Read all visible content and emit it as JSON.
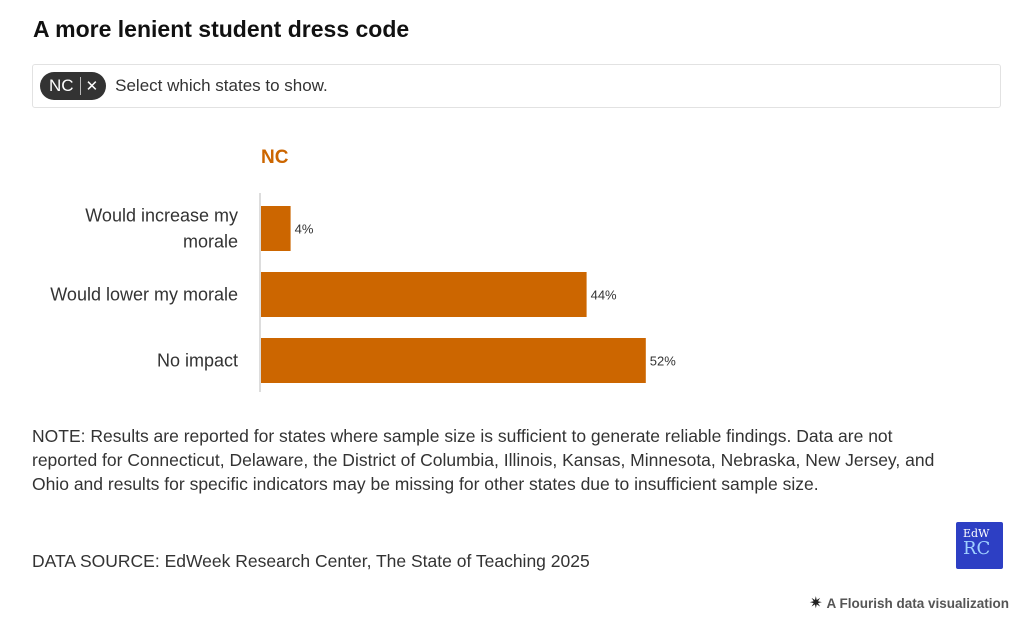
{
  "title": "A more lenient student dress code",
  "filter": {
    "chip_label": "NC",
    "chip_remove_icon": "close-icon",
    "placeholder": "Select which states to show."
  },
  "chart_data": {
    "type": "bar",
    "orientation": "horizontal",
    "panel_title": "NC",
    "categories": [
      "Would increase my morale",
      "Would lower my morale",
      "No impact"
    ],
    "category_lines": [
      [
        "Would increase my",
        "morale"
      ],
      [
        "Would lower my morale"
      ],
      [
        "No impact"
      ]
    ],
    "values": [
      4,
      44,
      52
    ],
    "value_labels": [
      "4%",
      "44%",
      "52%"
    ],
    "unit": "%",
    "xlim": [
      0,
      100
    ],
    "bar_color": "#cc6600",
    "grid": false,
    "legend": "none"
  },
  "note": "NOTE: Results are reported for states where sample size is sufficient to generate reliable findings. Data are not reported for Connecticut, Delaware, the District of Columbia, Illinois, Kansas, Minnesota, Nebraska, New Jersey, and Ohio and results for specific indicators may be missing for other states due to insufficient sample size.",
  "source": "DATA SOURCE: EdWeek Research Center, The State of Teaching 2025",
  "logo": {
    "line1": "EdW",
    "line2": "RC",
    "bg_color": "#2d3fc4"
  },
  "footer": {
    "icon": "flourish-star-icon",
    "label": "A Flourish data visualization"
  }
}
